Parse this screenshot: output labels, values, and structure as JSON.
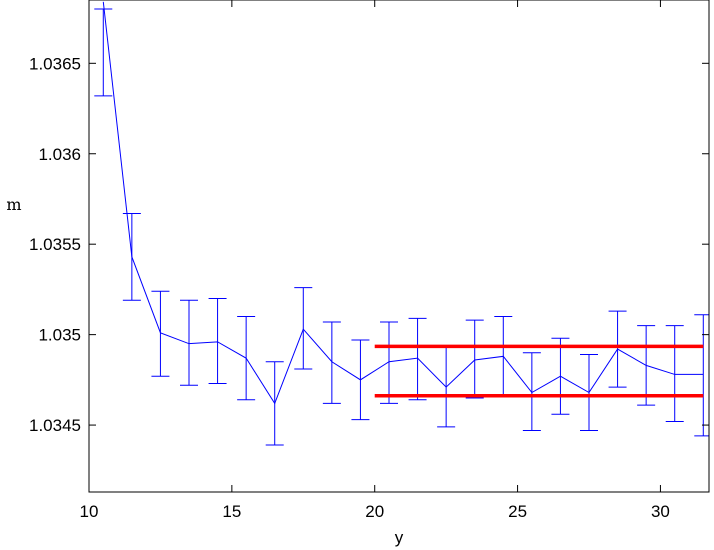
{
  "chart_data": {
    "type": "line",
    "xlabel": "y",
    "ylabel": "m",
    "xlim": [
      10,
      31.7
    ],
    "ylim": [
      1.03413,
      1.03685
    ],
    "xticks": [
      10,
      15,
      20,
      25,
      30
    ],
    "yticks": [
      1.0345,
      1.035,
      1.0355,
      1.036,
      1.0365
    ],
    "ytick_labels": [
      "1.0345",
      "1.035",
      "1.0355",
      "1.036",
      "1.0365"
    ],
    "grid": false,
    "series": [
      {
        "color": "#0000ff",
        "x": [
          10.5,
          11.5,
          12.5,
          13.5,
          14.5,
          15.5,
          16.5,
          17.5,
          18.5,
          19.5,
          20.5,
          21.5,
          22.5,
          23.5,
          24.5,
          25.5,
          26.5,
          27.5,
          28.5,
          29.5,
          30.5,
          31.5
        ],
        "y": [
          1.03684,
          1.03543,
          1.03501,
          1.03495,
          1.03496,
          1.03487,
          1.03462,
          1.03503,
          1.03485,
          1.03475,
          1.03485,
          1.03487,
          1.03471,
          1.03486,
          1.03488,
          1.03468,
          1.03477,
          1.03468,
          1.03492,
          1.03483,
          1.03478,
          1.03478
        ],
        "err_low": [
          1.03632,
          1.03519,
          1.03477,
          1.03472,
          1.03473,
          1.03464,
          1.03439,
          1.03481,
          1.03462,
          1.03453,
          1.03462,
          1.03464,
          1.03449,
          1.03465,
          1.03466,
          1.03447,
          1.03456,
          1.03447,
          1.03471,
          1.03461,
          1.03452,
          1.03444
        ],
        "err_high": [
          1.0368,
          1.03567,
          1.03524,
          1.03519,
          1.0352,
          1.0351,
          1.03485,
          1.03526,
          1.03507,
          1.03497,
          1.03507,
          1.03509,
          1.03493,
          1.03508,
          1.0351,
          1.0349,
          1.03498,
          1.03489,
          1.03513,
          1.03505,
          1.03505,
          1.03511
        ]
      }
    ],
    "reference_lines": [
      {
        "color": "#ff0000",
        "x_start": 20,
        "x_end": 31.5,
        "y": 1.034935
      },
      {
        "color": "#ff0000",
        "x_start": 20,
        "x_end": 31.5,
        "y": 1.034662
      }
    ]
  }
}
